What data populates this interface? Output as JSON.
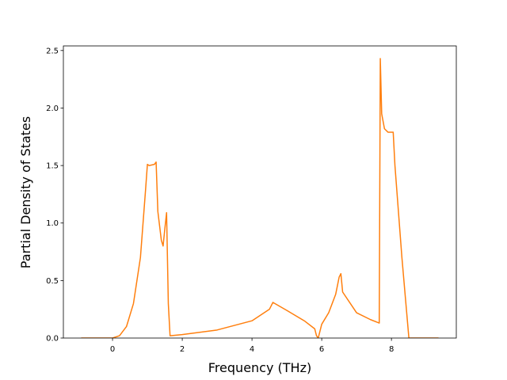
{
  "chart_data": {
    "type": "line",
    "x_label": "Frequency (THz)",
    "y_label": "Partial Density of States",
    "x": [
      -0.9,
      0,
      0.2,
      0.4,
      0.6,
      0.8,
      0.95,
      1.0,
      1.05,
      1.2,
      1.25,
      1.3,
      1.4,
      1.45,
      1.5,
      1.55,
      1.6,
      1.65,
      2,
      3,
      4,
      4.5,
      4.6,
      5,
      5.5,
      5.8,
      5.85,
      5.9,
      6.0,
      6.2,
      6.4,
      6.5,
      6.55,
      6.6,
      7.0,
      7.4,
      7.65,
      7.68,
      7.72,
      7.8,
      7.9,
      8.05,
      8.1,
      8.3,
      8.4,
      8.5,
      9.35
    ],
    "series": [
      {
        "color": "#ff7f0e",
        "values": [
          0,
          0,
          0.02,
          0.1,
          0.3,
          0.7,
          1.3,
          1.51,
          1.5,
          1.51,
          1.53,
          1.1,
          0.85,
          0.8,
          0.95,
          1.09,
          0.3,
          0.02,
          0.03,
          0.07,
          0.15,
          0.25,
          0.31,
          0.24,
          0.15,
          0.08,
          0.02,
          0,
          0.12,
          0.22,
          0.38,
          0.53,
          0.56,
          0.4,
          0.22,
          0.16,
          0.13,
          2.43,
          1.95,
          1.82,
          1.79,
          1.79,
          1.5,
          0.7,
          0.35,
          0,
          0
        ]
      }
    ],
    "xlim": [
      -1.41,
      9.86
    ],
    "ylim": [
      0,
      2.54
    ],
    "xticks": [
      0,
      2,
      4,
      6,
      8
    ],
    "yticks": [
      {
        "value": 0,
        "label": "0.0"
      },
      0.5,
      {
        "value": 1,
        "label": "1.0"
      },
      1.5,
      {
        "value": 2,
        "label": "2.0"
      },
      2.5
    ],
    "grid": false
  }
}
